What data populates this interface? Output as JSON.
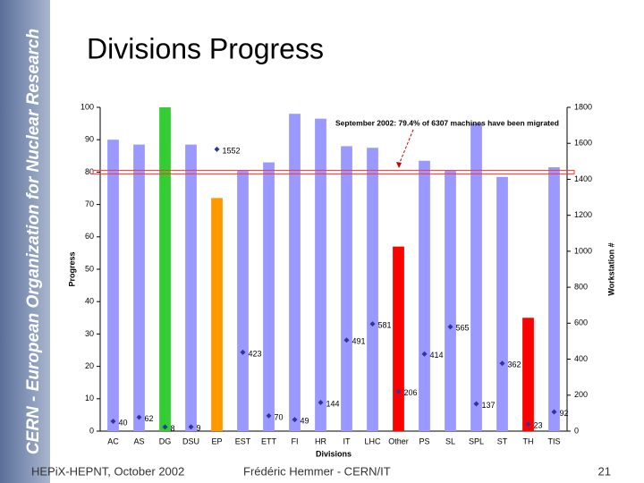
{
  "sidebar": "CERN - European Organization for Nuclear Research",
  "title": "Divisions Progress",
  "chart_data": {
    "type": "bar",
    "categories": [
      "AC",
      "AS",
      "DG",
      "DSU",
      "EP",
      "EST",
      "ETT",
      "FI",
      "HR",
      "IT",
      "LHC",
      "Other",
      "PS",
      "SL",
      "SPL",
      "ST",
      "TH",
      "TIS"
    ],
    "series": [
      {
        "values": [
          90,
          88.5,
          100,
          88.5,
          72,
          80.5,
          83,
          98,
          96.5,
          88,
          87.5,
          57,
          83.5,
          80.5,
          95,
          78.5,
          35,
          81.5
        ],
        "colors": [
          "#9999ff",
          "#9999ff",
          "#33cc33",
          "#9999ff",
          "#ff9900",
          "#9999ff",
          "#9999ff",
          "#9999ff",
          "#9999ff",
          "#9999ff",
          "#9999ff",
          "#ff0000",
          "#9999ff",
          "#9999ff",
          "#9999ff",
          "#9999ff",
          "#ff0000",
          "#9999ff"
        ]
      },
      {
        "axis": "y2",
        "color": "#333399",
        "values": [
          40,
          62,
          8,
          9,
          1552,
          423,
          70,
          49,
          144,
          491,
          581,
          206,
          414,
          565,
          137,
          362,
          23,
          92
        ]
      }
    ],
    "ylim": [
      0,
      100
    ],
    "yticks": [
      0,
      10,
      20,
      30,
      40,
      50,
      60,
      70,
      80,
      90,
      100
    ],
    "y2lim": [
      0,
      1800
    ],
    "y2ticks": [
      0,
      200,
      400,
      600,
      800,
      1000,
      1200,
      1400,
      1600,
      1800
    ],
    "reference_line": 80,
    "reference_color": "#ff3333",
    "xlabel": "Divisions",
    "ylabel": "Progress",
    "y2label": "Workstation #",
    "annotation": "September 2002: 79.4% of 6307 machines have been migrated"
  },
  "footer": {
    "left": "HEPiX-HEPNT, October 2002",
    "center": "Frédéric Hemmer - CERN/IT",
    "page": "21"
  }
}
